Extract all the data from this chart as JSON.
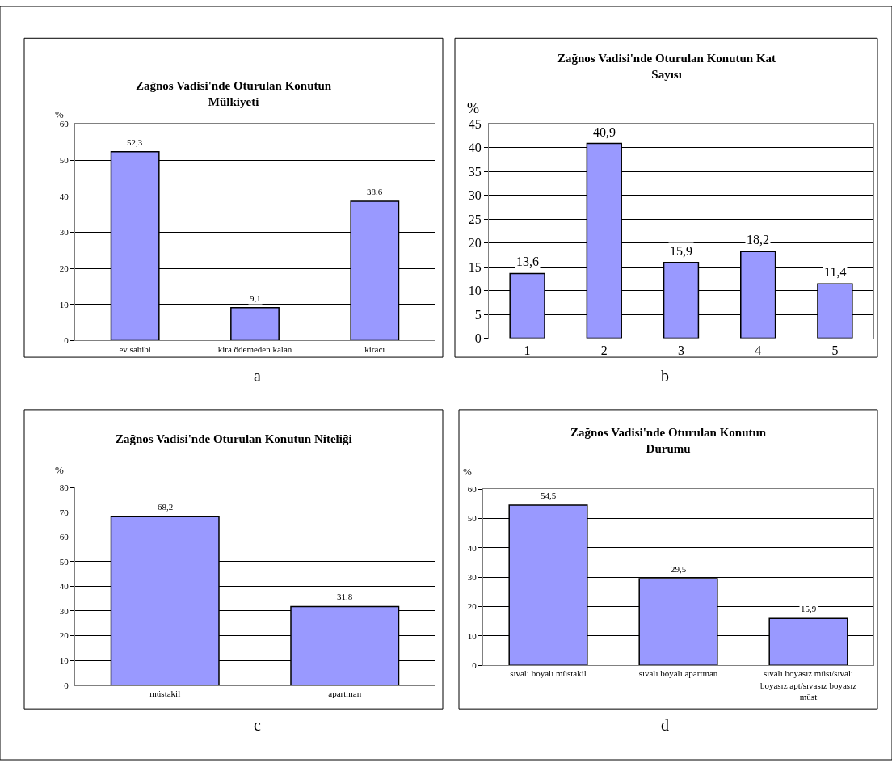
{
  "chart_data": [
    {
      "type": "bar",
      "title": "Zağnos Vadisi'nde Oturulan Konutun Mülkiyeti",
      "ylabel": "%",
      "categories": [
        "ev sahibi",
        "kira ödemeden kalan",
        "kiracı"
      ],
      "values": [
        52.3,
        9.1,
        38.6
      ],
      "value_labels": [
        "52,3",
        "9,1",
        "38,6"
      ],
      "color": "#9999ff",
      "ylim": [
        0,
        60
      ],
      "yticks": [
        0,
        10,
        20,
        30,
        40,
        50,
        60
      ],
      "grid": "y",
      "annotations": [
        "a"
      ]
    },
    {
      "type": "bar",
      "title": "Zağnos Vadisi'nde Oturulan Konutun Kat Sayısı",
      "ylabel": "%",
      "categories": [
        "1",
        "2",
        "3",
        "4",
        "5"
      ],
      "values": [
        13.6,
        40.9,
        15.9,
        18.2,
        11.4
      ],
      "value_labels": [
        "13,6",
        "40,9",
        "15,9",
        "18,2",
        "11,4"
      ],
      "color": "#9999ff",
      "ylim": [
        0,
        45
      ],
      "yticks": [
        0,
        5,
        10,
        15,
        20,
        25,
        30,
        35,
        40,
        45
      ],
      "grid": "y",
      "annotations": [
        "b"
      ]
    },
    {
      "type": "bar",
      "title": "Zağnos Vadisi'nde Oturulan Konutun Niteliği",
      "ylabel": "%",
      "categories": [
        "müstakil",
        "apartman"
      ],
      "values": [
        68.2,
        31.8
      ],
      "value_labels": [
        "68,2",
        "31,8"
      ],
      "color": "#9999ff",
      "ylim": [
        0,
        80
      ],
      "yticks": [
        0,
        10,
        20,
        30,
        40,
        50,
        60,
        70,
        80
      ],
      "grid": "y",
      "annotations": [
        "c"
      ]
    },
    {
      "type": "bar",
      "title": "Zağnos Vadisi'nde Oturulan Konutun Durumu",
      "ylabel": "%",
      "categories": [
        "sıvalı boyalı müstakil",
        "sıvalı boyalı apartman",
        "sıvalı boyasız müst/sıvalı boyasız apt/sıvasız boyasız müst"
      ],
      "values": [
        54.5,
        29.5,
        15.9
      ],
      "value_labels": [
        "54,5",
        "29,5",
        "15,9"
      ],
      "color": "#9999ff",
      "ylim": [
        0,
        60
      ],
      "yticks": [
        0,
        10,
        20,
        30,
        40,
        50,
        60
      ],
      "grid": "y",
      "annotations": [
        "d"
      ]
    }
  ]
}
